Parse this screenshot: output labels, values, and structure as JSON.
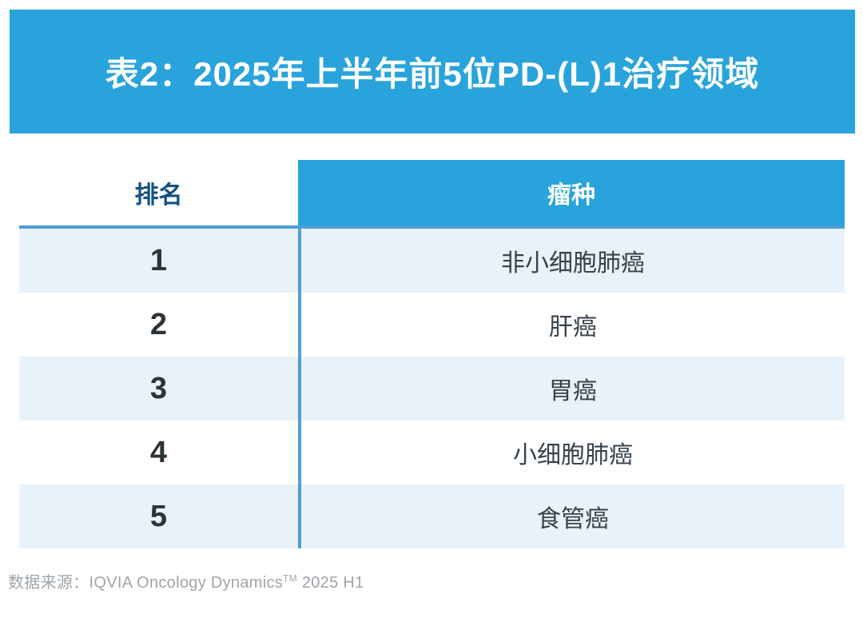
{
  "chart_data": {
    "type": "table",
    "title": "表2：2025年上半年前5位PD-(L)1治疗领域",
    "columns": [
      "排名",
      "瘤种"
    ],
    "rows": [
      [
        "1",
        "非小细胞肺癌"
      ],
      [
        "2",
        "肝癌"
      ],
      [
        "3",
        "胃癌"
      ],
      [
        "4",
        "小细胞肺癌"
      ],
      [
        "5",
        "食管癌"
      ]
    ],
    "source": "数据来源：IQVIA Oncology Dynamics™ 2025 H1",
    "layout": {
      "legend": "none",
      "grid": "off",
      "header_style": "rank column: dark-blue text on white; tumor column: white text on blue",
      "row_striping": "odd rows light blue, even rows white"
    }
  },
  "footer": {
    "prefix": "数据来源：IQVIA Oncology Dynamics",
    "tm": "TM",
    "suffix": " 2025 H1"
  },
  "colors": {
    "banner_blue": "#29A3DB",
    "divider_blue": "#4E9FD3",
    "row_alt_blue": "#E9F1F9",
    "rank_header_text": "#15517E",
    "body_text": "#37424C",
    "source_gray": "#9EA4AA"
  }
}
